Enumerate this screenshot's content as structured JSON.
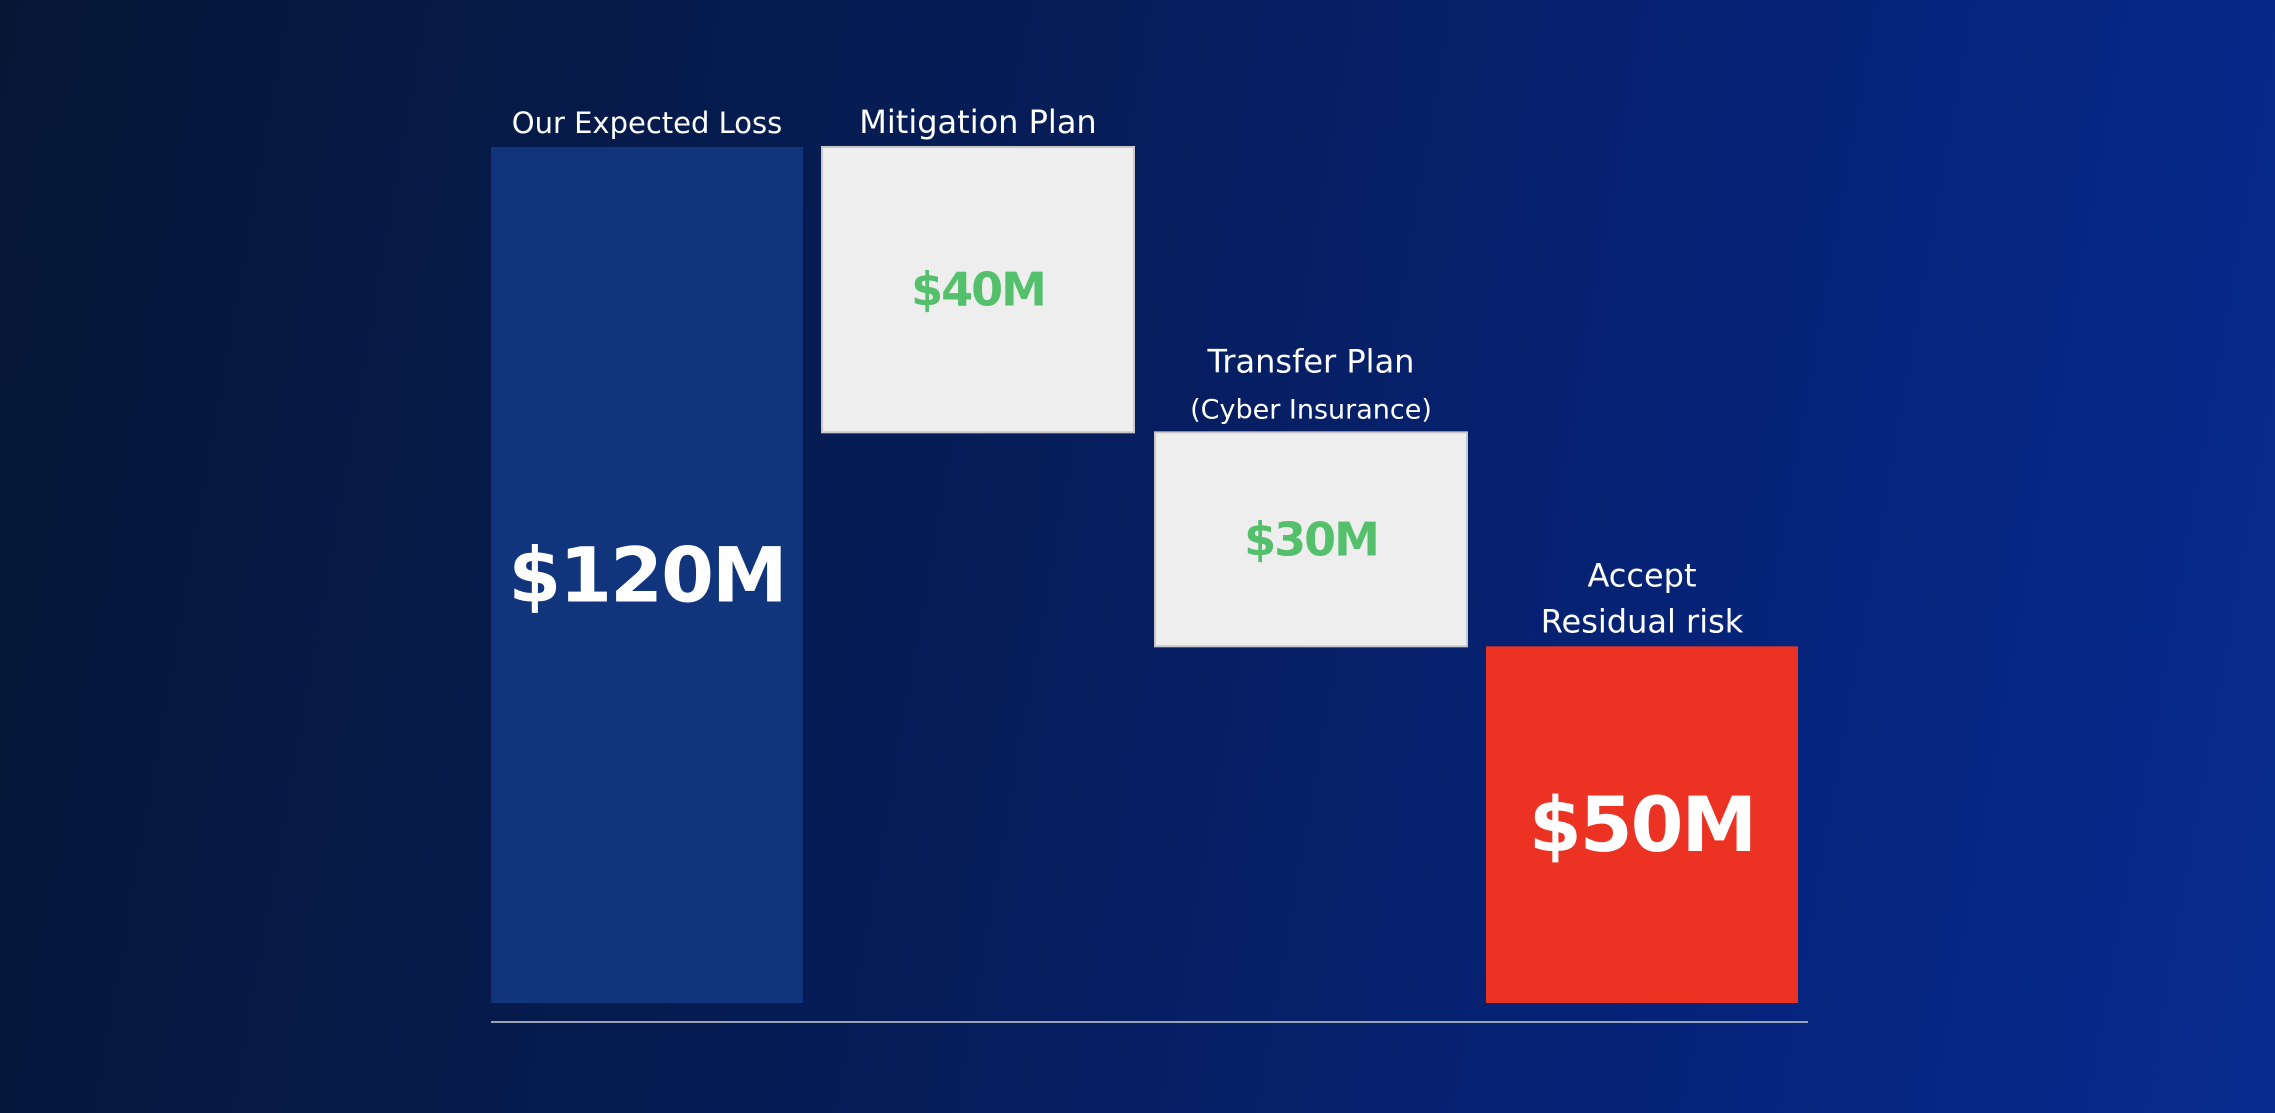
{
  "chart_data": {
    "type": "waterfall",
    "categories": [
      [
        "Our Expected Loss"
      ],
      [
        "Mitigation Plan"
      ],
      [
        "Transfer Plan",
        "(Cyber  Insurance)"
      ],
      [
        "Accept",
        "Residual risk"
      ]
    ],
    "values": [
      120,
      -40,
      -30,
      50
    ],
    "value_labels": [
      "$120M",
      "$40M",
      "$30M",
      "$50M"
    ],
    "bar_kinds": [
      "total",
      "decrease",
      "decrease",
      "total"
    ],
    "units": "$M",
    "ylim": [
      0,
      120
    ],
    "grid": false,
    "legend": "none",
    "title": "",
    "xlabel": "",
    "ylabel": ""
  },
  "colors": {
    "total_start_fill": "#10357d",
    "decrease_fill": "#eeeeee",
    "decrease_stroke": "#c8c8c8",
    "decrease_label": "#55c06c",
    "total_end_fill": "#ec3223",
    "bar_label": "#ffffff",
    "category_label": "#ffffff",
    "baseline": "#9aa3b5"
  }
}
